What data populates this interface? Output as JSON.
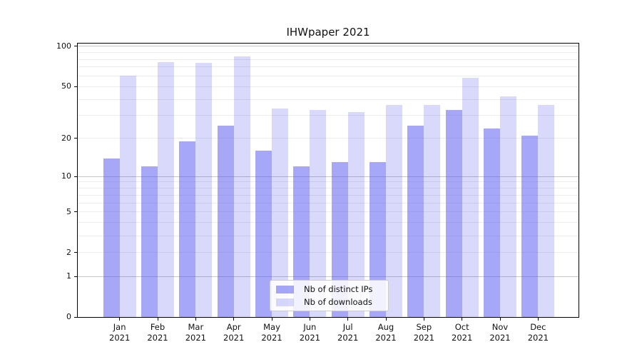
{
  "title": "IHWpaper 2021",
  "chart_data": {
    "type": "bar",
    "title": "IHWpaper 2021",
    "orientation": "vertical-grouped",
    "categories": [
      "Jan 2021",
      "Feb 2021",
      "Mar 2021",
      "Apr 2021",
      "May 2021",
      "Jun 2021",
      "Jul 2021",
      "Aug 2021",
      "Sep 2021",
      "Oct 2021",
      "Nov 2021",
      "Dec 2021"
    ],
    "x_tick_line1": [
      "Jan",
      "Feb",
      "Mar",
      "Apr",
      "May",
      "Jun",
      "Jul",
      "Aug",
      "Sep",
      "Oct",
      "Nov",
      "Dec"
    ],
    "x_tick_line2": "2021",
    "series": [
      {
        "name": "Nb of distinct IPs",
        "color": "rgba(80,80,240,0.50)",
        "values": [
          14,
          12,
          19,
          25,
          16,
          12,
          13,
          13,
          25,
          33,
          24,
          21
        ]
      },
      {
        "name": "Nb of downloads",
        "color": "rgba(80,80,240,0.22)",
        "values": [
          60,
          76,
          75,
          84,
          34,
          33,
          32,
          36,
          36,
          58,
          42,
          36
        ]
      }
    ],
    "xlabel": "",
    "ylabel": "",
    "yscale": "symlog (log1p)",
    "ylim": [
      0,
      105
    ],
    "yticks": [
      0,
      1,
      2,
      5,
      10,
      20,
      50,
      100
    ],
    "grid": "horizontal",
    "grid_major_values": [
      1,
      10,
      100
    ],
    "grid_minor_values": [
      2,
      3,
      4,
      5,
      6,
      7,
      8,
      9,
      20,
      30,
      40,
      50,
      60,
      70,
      80,
      90
    ],
    "legend_position": "lower center"
  },
  "legend": {
    "labels": [
      "Nb of distinct IPs",
      "Nb of downloads"
    ]
  },
  "colors": {
    "grid_major": "#c6c6c6",
    "grid_minor": "#ececec",
    "spine": "#000000",
    "text": "#111111"
  }
}
